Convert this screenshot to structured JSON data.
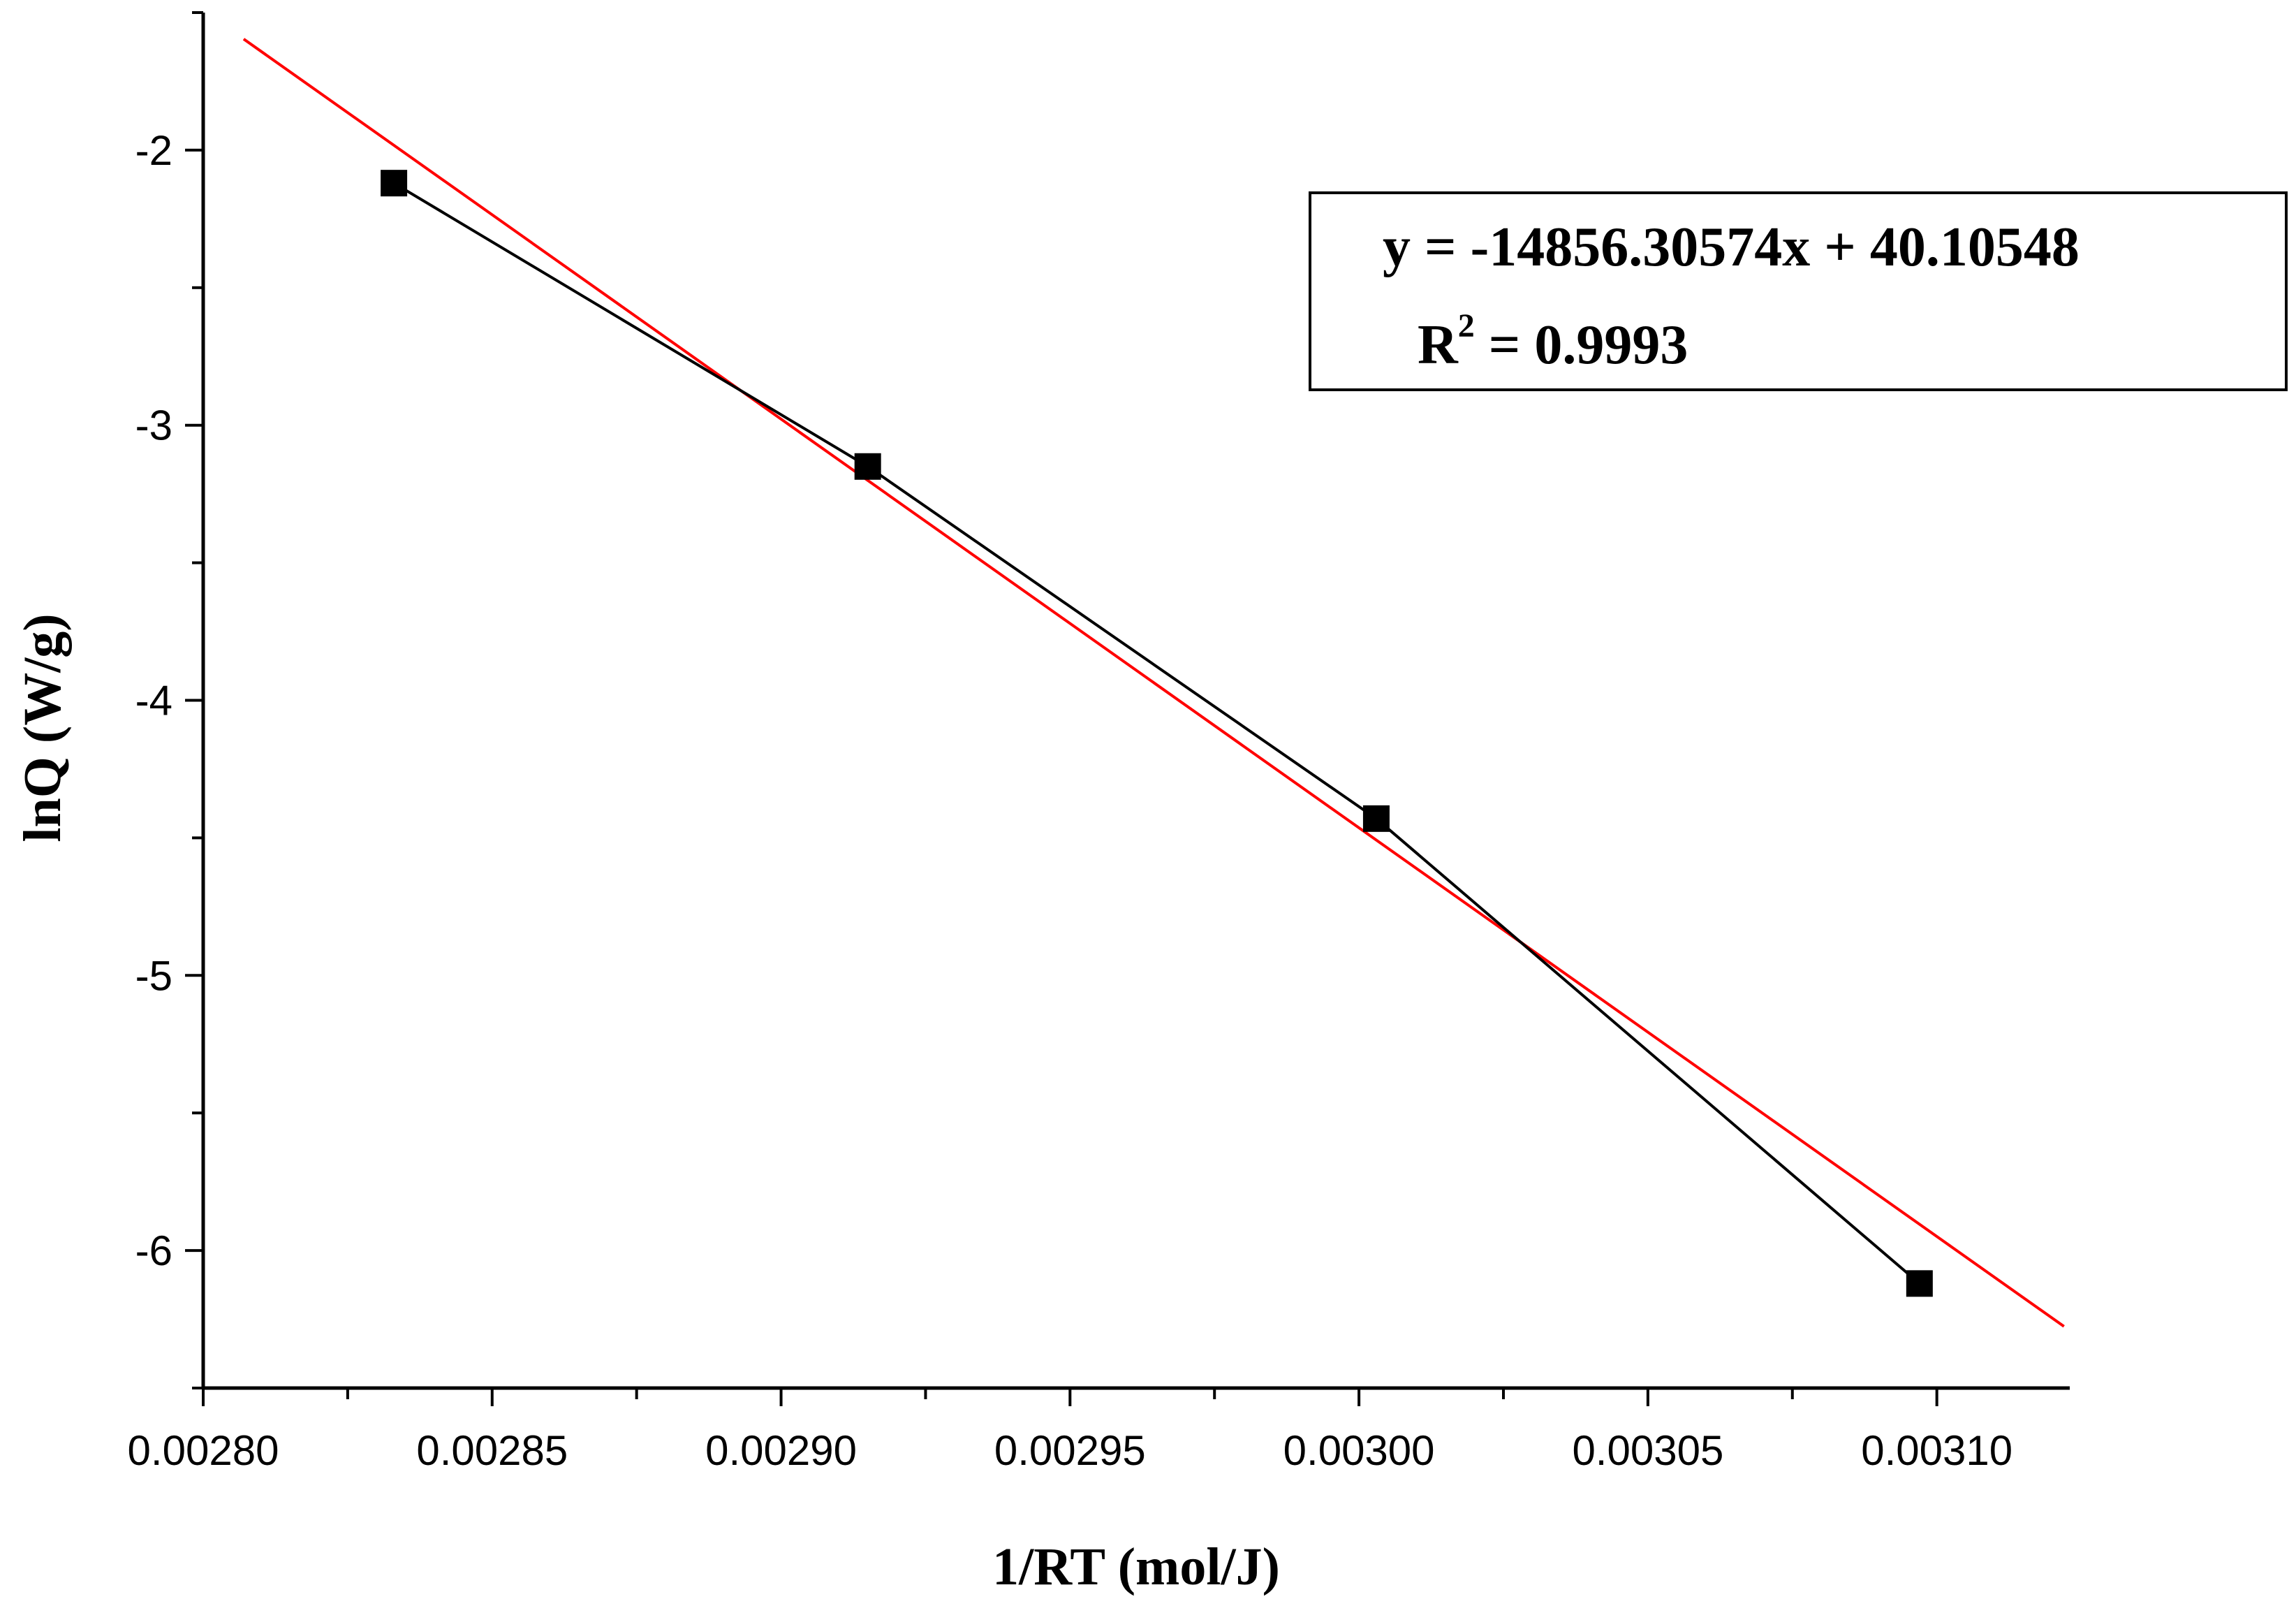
{
  "chart_data": {
    "type": "scatter",
    "xlabel": "1/RT (mol/J)",
    "ylabel": "lnQ (W/g)",
    "xlim": [
      0.0028,
      0.003123
    ],
    "ylim": [
      -6.5,
      -1.5
    ],
    "x_ticks": [
      0.0028,
      0.00285,
      0.0029,
      0.00295,
      0.003,
      0.00305,
      0.0031
    ],
    "x_tick_labels": [
      "0.00280",
      "0.00285",
      "0.00290",
      "0.00295",
      "0.00300",
      "0.00305",
      "0.00310"
    ],
    "y_ticks": [
      -2,
      -3,
      -4,
      -5,
      -6
    ],
    "y_tick_labels": [
      "-2",
      "-3",
      "-4",
      "-5",
      "-6"
    ],
    "series": [
      {
        "x": [
          0.002833,
          0.002915,
          0.003003,
          0.003097
        ],
        "y": [
          -2.12,
          -3.15,
          -4.43,
          -6.12
        ],
        "color": "#000000",
        "marker": "square",
        "connected": true
      }
    ],
    "fit_line": {
      "slope": -14856.30574,
      "intercept": 40.10548,
      "x_range": [
        0.002807,
        0.003122
      ],
      "color": "#ff0000"
    },
    "annotation": {
      "equation": "y = -14856.30574x + 40.10548",
      "r2_label": "R",
      "r2_superscript": "2",
      "r2_value": " = 0.9993"
    },
    "grid": false,
    "legend": "none"
  }
}
